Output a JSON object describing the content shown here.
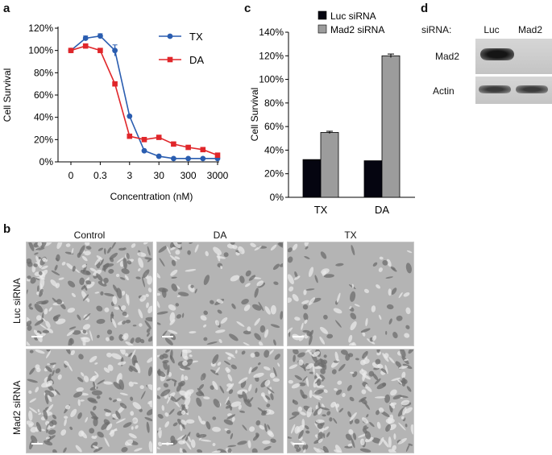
{
  "panels": {
    "a": "a",
    "b": "b",
    "c": "c",
    "d": "d"
  },
  "chart_data": [
    {
      "type": "line",
      "ylabel": "Cell Survival",
      "xlabel": "Concentration (nM)",
      "x_ticks": [
        "0",
        "0.3",
        "3",
        "30",
        "300",
        "3000"
      ],
      "y_ticks": [
        "0%",
        "20%",
        "40%",
        "60%",
        "80%",
        "100%",
        "120%"
      ],
      "ylim": [
        0,
        120
      ],
      "legend_position": "top-right",
      "series": [
        {
          "name": "TX",
          "color": "#2a5db0",
          "marker": "circle",
          "x": [
            0,
            0.1,
            0.3,
            1,
            3,
            10,
            30,
            100,
            300,
            1000,
            3000
          ],
          "y": [
            100,
            111,
            113,
            100,
            41,
            10,
            5,
            3,
            3,
            3,
            3
          ],
          "err": [
            0,
            2,
            2,
            5,
            0,
            0,
            0,
            0,
            0,
            0,
            0
          ]
        },
        {
          "name": "DA",
          "color": "#e0262a",
          "marker": "square",
          "x": [
            0,
            0.1,
            0.3,
            1,
            3,
            10,
            30,
            100,
            300,
            1000,
            3000
          ],
          "y": [
            100,
            104,
            100,
            70,
            23,
            20,
            22,
            16,
            13,
            11,
            6
          ],
          "err": [
            0,
            0,
            0,
            0,
            0,
            0,
            0,
            0,
            0,
            0,
            0
          ]
        }
      ]
    },
    {
      "type": "bar",
      "ylabel": "Cell Survival",
      "categories": [
        "TX",
        "DA"
      ],
      "y_ticks": [
        "0%",
        "20%",
        "40%",
        "60%",
        "80%",
        "100%",
        "120%",
        "140%"
      ],
      "ylim": [
        0,
        140
      ],
      "legend_position": "top",
      "series": [
        {
          "name": "Luc siRNA",
          "color": "#050510",
          "values": [
            32,
            31
          ],
          "err": [
            0,
            0
          ]
        },
        {
          "name": "Mad2 siRNA",
          "color": "#9c9c9c",
          "values": [
            55,
            120
          ],
          "err": [
            1,
            1.5
          ]
        }
      ]
    }
  ],
  "micrographs": {
    "columns": [
      "Control",
      "DA",
      "TX"
    ],
    "rows": [
      "Luc siRNA",
      "Mad2 siRNA"
    ]
  },
  "blot": {
    "header_label": "siRNA:",
    "lanes": [
      "Luc",
      "Mad2"
    ],
    "rows": [
      "Mad2",
      "Actin"
    ]
  }
}
